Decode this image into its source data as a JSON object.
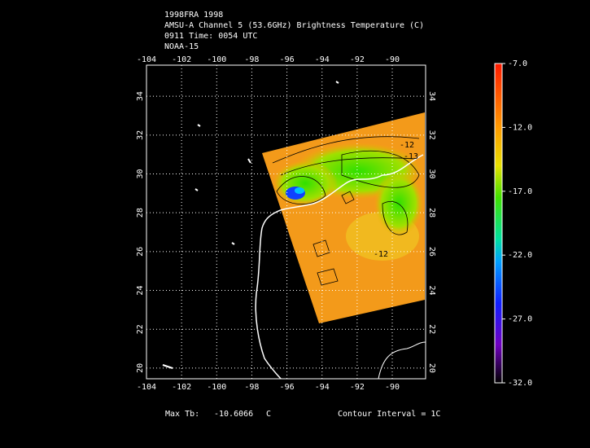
{
  "header": {
    "lines": [
      "1998FRA 1998",
      "AMSU-A Channel 5 (53.6GHz) Brightness Temperature (C)",
      "0911 Time: 0054 UTC",
      "NOAA-15"
    ]
  },
  "map": {
    "lonlim": [
      -104,
      -88.1
    ],
    "latlim": [
      19.45,
      35.6
    ],
    "lon_ticks": [
      -104,
      -102,
      -100,
      -98,
      -96,
      -94,
      -92,
      -90
    ],
    "lat_ticks": [
      20,
      22,
      24,
      26,
      28,
      30,
      32,
      34
    ],
    "contour_labels": [
      "-12",
      "-13",
      "-12"
    ]
  },
  "colorbar": {
    "lim": [
      -32,
      -7
    ],
    "ticks": [
      {
        "value": -7,
        "label": "-7.0"
      },
      {
        "value": -12,
        "label": "-12.0"
      },
      {
        "value": -17,
        "label": "-17.0"
      },
      {
        "value": -22,
        "label": "-22.0"
      },
      {
        "value": -27,
        "label": "-27.0"
      },
      {
        "value": -32,
        "label": "-32.0"
      }
    ]
  },
  "footer": {
    "max_label": "Max Tb:",
    "max_value": "-10.6066",
    "unit": "C",
    "contour": "Contour Interval = 1C"
  }
}
